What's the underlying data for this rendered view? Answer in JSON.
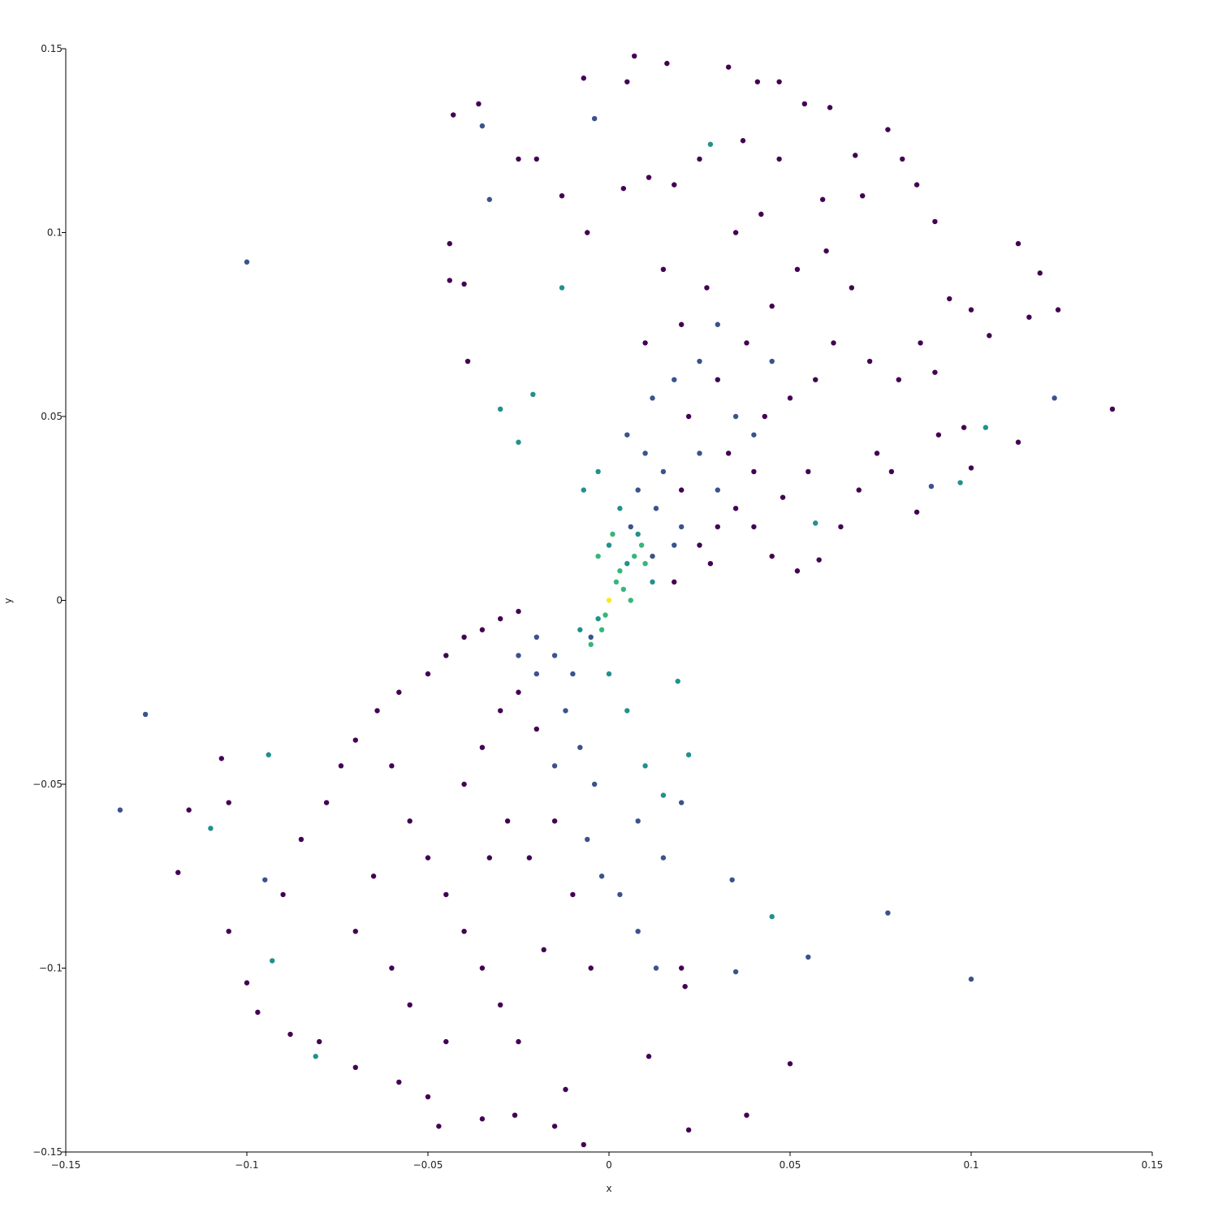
{
  "chart_data": {
    "type": "scatter",
    "xlabel": "x",
    "ylabel": "y",
    "xlim": [
      -0.15,
      0.15
    ],
    "ylim": [
      -0.15,
      0.15
    ],
    "xticks": [
      {
        "value": -0.15,
        "label": "−0.15"
      },
      {
        "value": -0.1,
        "label": "−0.1"
      },
      {
        "value": -0.05,
        "label": "−0.05"
      },
      0,
      0.05,
      0.1,
      0.15
    ],
    "yticks": [
      {
        "value": -0.15,
        "label": "−0.15"
      },
      {
        "value": -0.1,
        "label": "−0.1"
      },
      {
        "value": -0.05,
        "label": "−0.05"
      },
      0,
      0.05,
      0.1,
      0.15
    ],
    "series": [
      {
        "color": "#440154",
        "x": [
          0.007,
          0.016,
          0.005,
          -0.007,
          0.033,
          0.041,
          0.047,
          0.054,
          0.061,
          0.077,
          0.068,
          0.081,
          0.085,
          0.07,
          0.059,
          0.047,
          0.037,
          0.025,
          0.018,
          0.011,
          0.004,
          -0.006,
          -0.013,
          -0.025,
          -0.043,
          -0.036,
          -0.044,
          -0.044,
          -0.04,
          -0.039,
          -0.02,
          0.09,
          0.094,
          0.1,
          0.113,
          0.119,
          0.124,
          0.116,
          0.105,
          0.139,
          0.113,
          0.1,
          0.098,
          0.091,
          0.085,
          0.078,
          0.074,
          0.069,
          0.064,
          0.058,
          0.052,
          0.045,
          0.04,
          0.035,
          0.03,
          0.025,
          0.033,
          0.043,
          0.05,
          0.057,
          0.062,
          0.072,
          0.08,
          0.086,
          0.09,
          0.067,
          0.06,
          0.052,
          0.045,
          0.038,
          0.03,
          0.022,
          0.027,
          0.035,
          0.042,
          0.015,
          0.02,
          0.01,
          0.04,
          0.048,
          0.055,
          0.02,
          0.028,
          0.018,
          -0.047,
          -0.035,
          -0.026,
          -0.015,
          -0.007,
          -0.012,
          -0.05,
          -0.058,
          -0.07,
          -0.08,
          -0.088,
          -0.097,
          -0.1,
          -0.105,
          -0.119,
          -0.116,
          -0.105,
          -0.107,
          -0.09,
          -0.085,
          -0.078,
          -0.074,
          -0.07,
          -0.064,
          -0.058,
          -0.05,
          -0.045,
          -0.04,
          -0.035,
          -0.03,
          -0.025,
          -0.06,
          -0.055,
          -0.05,
          -0.045,
          -0.04,
          -0.035,
          -0.03,
          -0.025,
          -0.065,
          -0.07,
          -0.06,
          -0.055,
          -0.045,
          -0.04,
          -0.035,
          -0.03,
          -0.025,
          -0.02,
          -0.015,
          -0.01,
          -0.005,
          -0.018,
          -0.022,
          -0.028,
          -0.033,
          0.011,
          0.021,
          0.02,
          0.05,
          0.038,
          0.022
        ],
        "values": [
          0.148,
          0.146,
          0.141,
          0.142,
          0.145,
          0.141,
          0.141,
          0.135,
          0.134,
          0.128,
          0.121,
          0.12,
          0.113,
          0.11,
          0.109,
          0.12,
          0.125,
          0.12,
          0.113,
          0.115,
          0.112,
          0.1,
          0.11,
          0.12,
          0.132,
          0.135,
          0.097,
          0.087,
          0.086,
          0.065,
          0.12,
          0.103,
          0.082,
          0.079,
          0.097,
          0.089,
          0.079,
          0.077,
          0.072,
          0.052,
          0.043,
          0.036,
          0.047,
          0.045,
          0.024,
          0.035,
          0.04,
          0.03,
          0.02,
          0.011,
          0.008,
          0.012,
          0.02,
          0.025,
          0.02,
          0.015,
          0.04,
          0.05,
          0.055,
          0.06,
          0.07,
          0.065,
          0.06,
          0.07,
          0.062,
          0.085,
          0.095,
          0.09,
          0.08,
          0.07,
          0.06,
          0.05,
          0.085,
          0.1,
          0.105,
          0.09,
          0.075,
          0.07,
          0.035,
          0.028,
          0.035,
          0.03,
          0.01,
          0.005,
          -0.143,
          -0.141,
          -0.14,
          -0.143,
          -0.148,
          -0.133,
          -0.135,
          -0.131,
          -0.127,
          -0.12,
          -0.118,
          -0.112,
          -0.104,
          -0.09,
          -0.074,
          -0.057,
          -0.055,
          -0.043,
          -0.08,
          -0.065,
          -0.055,
          -0.045,
          -0.038,
          -0.03,
          -0.025,
          -0.02,
          -0.015,
          -0.01,
          -0.008,
          -0.005,
          -0.003,
          -0.045,
          -0.06,
          -0.07,
          -0.08,
          -0.09,
          -0.1,
          -0.11,
          -0.12,
          -0.075,
          -0.09,
          -0.1,
          -0.11,
          -0.12,
          -0.05,
          -0.04,
          -0.03,
          -0.025,
          -0.035,
          -0.06,
          -0.08,
          -0.1,
          -0.095,
          -0.07,
          -0.06,
          -0.07,
          -0.124,
          -0.105,
          -0.1,
          -0.126,
          -0.14,
          -0.144
        ]
      },
      {
        "color": "#3b528b",
        "x": [
          0.01,
          0.015,
          0.02,
          0.013,
          0.008,
          0.005,
          0.012,
          0.018,
          0.025,
          0.03,
          0.035,
          0.03,
          0.025,
          0.04,
          0.045,
          0.012,
          0.018,
          0.006,
          -0.005,
          -0.01,
          -0.015,
          -0.02,
          -0.012,
          -0.008,
          -0.004,
          -0.015,
          -0.02,
          -0.025,
          -0.006,
          -0.002,
          0.003,
          0.008,
          0.013,
          -0.1,
          -0.135,
          -0.128,
          -0.095,
          0.1,
          0.077,
          0.055,
          0.035,
          0.034,
          0.123,
          0.089,
          -0.035,
          -0.033,
          -0.004,
          0.008,
          0.015,
          0.02
        ],
        "values": [
          0.04,
          0.035,
          0.02,
          0.025,
          0.03,
          0.045,
          0.055,
          0.06,
          0.065,
          0.075,
          0.05,
          0.03,
          0.04,
          0.045,
          0.065,
          0.012,
          0.015,
          0.02,
          -0.01,
          -0.02,
          -0.015,
          -0.01,
          -0.03,
          -0.04,
          -0.05,
          -0.045,
          -0.02,
          -0.015,
          -0.065,
          -0.075,
          -0.08,
          -0.09,
          -0.1,
          0.092,
          -0.057,
          -0.031,
          -0.076,
          -0.103,
          -0.085,
          -0.097,
          -0.101,
          -0.076,
          0.055,
          0.031,
          0.129,
          0.109,
          0.131,
          -0.06,
          -0.07,
          -0.055
        ]
      },
      {
        "color": "#21918c",
        "x": [
          0.028,
          -0.013,
          0.104,
          0.097,
          0.057,
          0.005,
          0.008,
          0.003,
          -0.003,
          -0.007,
          0.0,
          0.012,
          -0.003,
          -0.008,
          0.0,
          0.005,
          0.01,
          -0.11,
          -0.081,
          -0.093,
          -0.094,
          0.022,
          0.045,
          0.015,
          0.019,
          -0.021,
          -0.025,
          -0.03
        ],
        "values": [
          0.124,
          0.085,
          0.047,
          0.032,
          0.021,
          0.01,
          0.018,
          0.025,
          0.035,
          0.03,
          0.015,
          0.005,
          -0.005,
          -0.008,
          -0.02,
          -0.03,
          -0.045,
          -0.062,
          -0.124,
          -0.098,
          -0.042,
          -0.042,
          -0.086,
          -0.053,
          -0.022,
          0.056,
          0.043,
          0.052
        ]
      },
      {
        "color": "#35b779",
        "x": [
          0.003,
          0.007,
          0.01,
          -0.002,
          -0.005,
          0.002,
          0.004,
          -0.001,
          0.006,
          0.009,
          -0.003,
          0.001
        ],
        "values": [
          0.008,
          0.012,
          0.01,
          -0.008,
          -0.012,
          0.005,
          0.003,
          -0.004,
          0.0,
          0.015,
          0.012,
          0.018
        ]
      },
      {
        "color": "#fde725",
        "x": [
          0.0
        ],
        "values": [
          0.0
        ]
      }
    ]
  }
}
